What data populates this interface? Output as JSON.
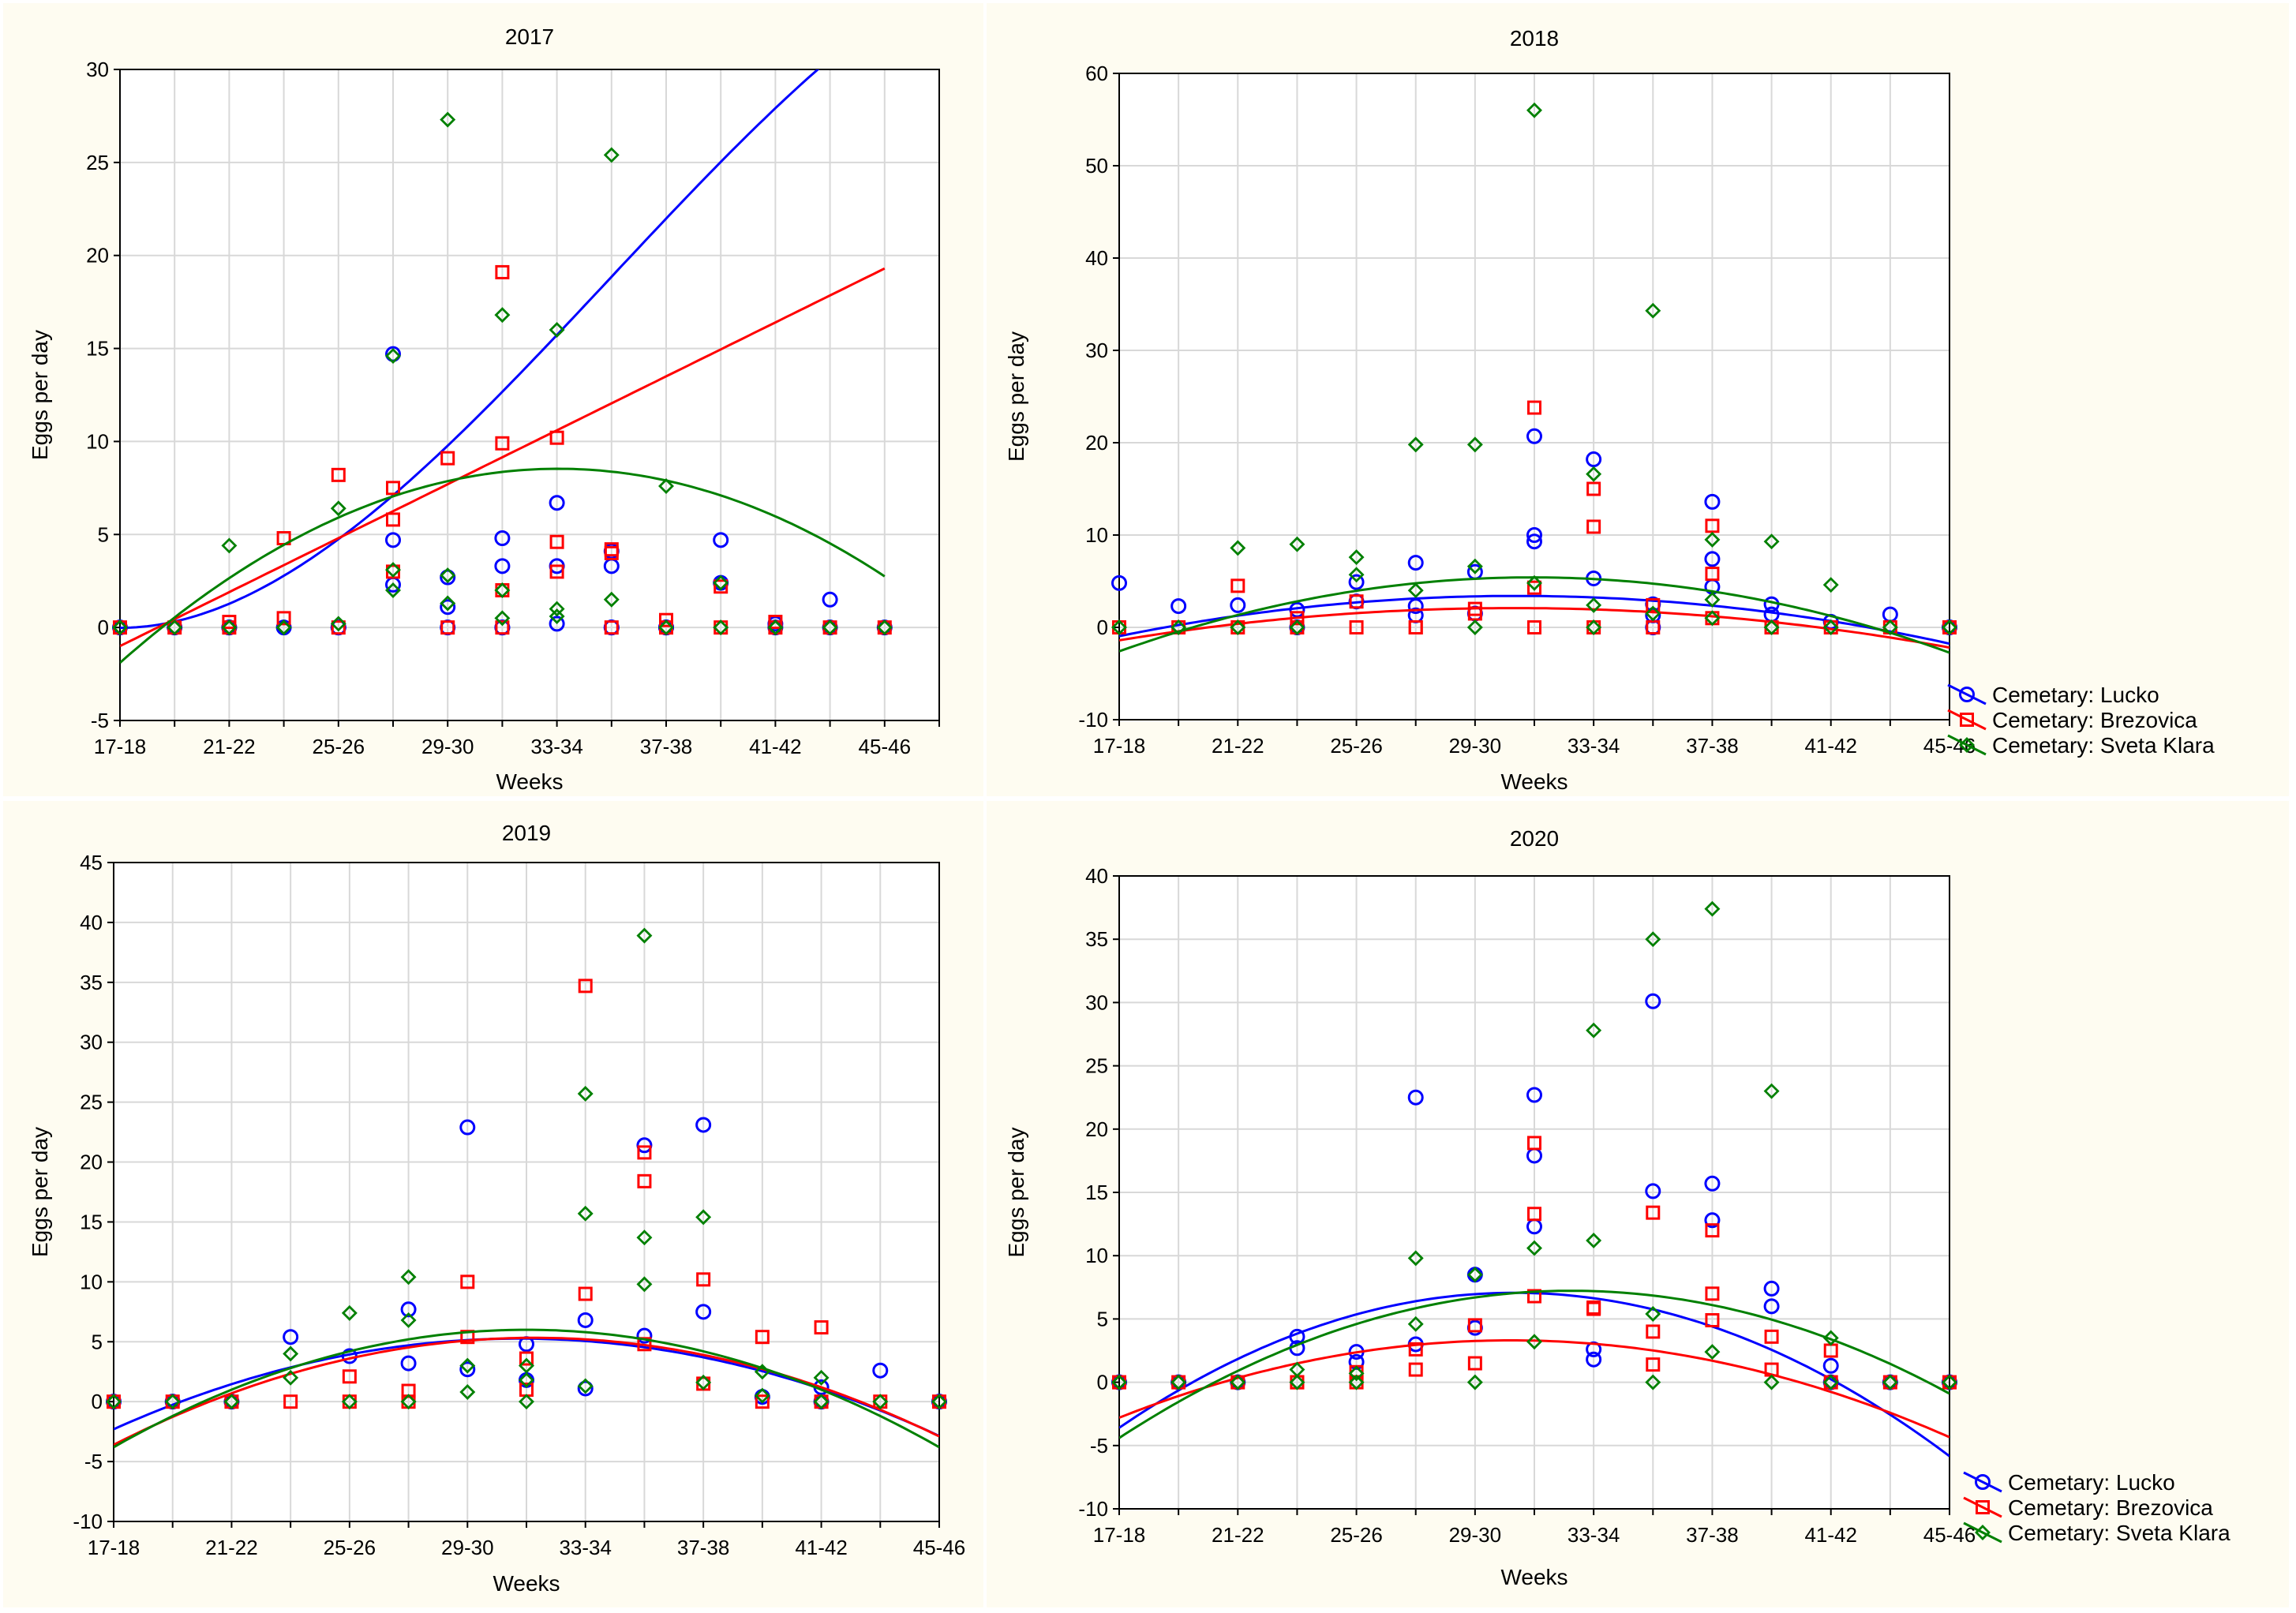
{
  "chart_data": [
    {
      "type": "scatter",
      "title": "2017",
      "xlabel": "Weeks",
      "ylabel": "Eggs per day",
      "ylim": [
        -5,
        30
      ],
      "yticks": [
        -5,
        0,
        5,
        10,
        15,
        20,
        25,
        30
      ],
      "xlim": [
        0,
        15
      ],
      "xtick_labels": [
        "17-18",
        "21-22",
        "25-26",
        "29-30",
        "33-34",
        "37-38",
        "41-42",
        "45-46"
      ],
      "grid": true,
      "series": [
        {
          "name": "Cemetary: Lucko",
          "color": "#0000ff",
          "marker": "circle",
          "x": [
            0,
            1,
            2,
            2,
            3,
            4,
            4,
            5,
            5,
            5,
            6,
            6,
            6,
            7,
            7,
            7,
            7,
            8,
            8,
            8,
            9,
            9,
            9,
            9,
            10,
            10,
            10,
            11,
            11,
            12,
            12,
            13,
            13,
            14
          ],
          "y": [
            0,
            0,
            0,
            0,
            0,
            0,
            0,
            4.7,
            2.3,
            14.7,
            2.7,
            1.1,
            0,
            4.8,
            3.3,
            0,
            0,
            6.7,
            3.3,
            0.2,
            3.3,
            4.1,
            0,
            0,
            0,
            0,
            0,
            4.7,
            2.4,
            0.2,
            0,
            1.5,
            0,
            0
          ],
          "fit": [
            -0.02,
            0.0,
            0.35,
            -0.013
          ]
        },
        {
          "name": "Cemetary: Brezovica",
          "color": "#ff0000",
          "marker": "square",
          "x": [
            0,
            1,
            2,
            2,
            3,
            3,
            4,
            4,
            5,
            5,
            5,
            6,
            6,
            7,
            7,
            7,
            7,
            8,
            8,
            8,
            9,
            9,
            9,
            10,
            10,
            11,
            11,
            12,
            12,
            13,
            14
          ],
          "y": [
            0,
            0,
            0.3,
            0,
            4.8,
            0.5,
            8.2,
            0,
            7.5,
            5.8,
            3.0,
            9.1,
            0,
            19.1,
            9.9,
            2.0,
            0,
            10.2,
            4.6,
            3.0,
            4.2,
            4.0,
            0,
            0.4,
            0,
            2.2,
            0,
            0.3,
            0,
            0,
            0
          ],
          "fit": [
            -1.0,
            1.45,
            0.0,
            0.0
          ]
        },
        {
          "name": "Cemetary: Sveta Klara",
          "color": "#008000",
          "marker": "diamond",
          "x": [
            0,
            1,
            2,
            2,
            3,
            3,
            4,
            4,
            5,
            5,
            5,
            6,
            6,
            6,
            7,
            7,
            7,
            8,
            8,
            8,
            9,
            9,
            10,
            10,
            11,
            11,
            12,
            12,
            13,
            14
          ],
          "y": [
            0,
            0,
            4.4,
            0,
            0,
            0,
            6.4,
            0.2,
            14.6,
            3.1,
            2.0,
            27.3,
            2.8,
            1.3,
            16.8,
            2.0,
            0.5,
            16.0,
            1.0,
            0.6,
            25.4,
            1.5,
            7.6,
            0,
            2.4,
            0,
            0,
            0,
            0,
            0
          ],
          "fit": [
            -1.9,
            2.6,
            -0.162,
            0.0
          ]
        }
      ]
    },
    {
      "type": "scatter",
      "title": "2018",
      "xlabel": "Weeks",
      "ylabel": "Eggs per day",
      "ylim": [
        -10,
        60
      ],
      "yticks": [
        -10,
        0,
        10,
        20,
        30,
        40,
        50,
        60
      ],
      "xlim": [
        0,
        14
      ],
      "xtick_labels": [
        "17-18",
        "21-22",
        "25-26",
        "29-30",
        "33-34",
        "37-38",
        "41-42",
        "45-46"
      ],
      "grid": true,
      "series": [
        {
          "name": "Cemetary: Lucko",
          "color": "#0000ff",
          "marker": "circle",
          "x": [
            0,
            1,
            2,
            3,
            3,
            4,
            4,
            5,
            5,
            5,
            6,
            6,
            7,
            7,
            7,
            8,
            8,
            9,
            9,
            9,
            10,
            10,
            10,
            11,
            11,
            12,
            13,
            14
          ],
          "y": [
            4.8,
            2.3,
            2.4,
            1.9,
            0,
            4.9,
            2.8,
            7.0,
            2.3,
            1.3,
            6.0,
            1.5,
            20.7,
            10.0,
            9.3,
            18.2,
            5.3,
            2.5,
            1.3,
            0,
            13.6,
            7.4,
            4.4,
            2.5,
            1.4,
            0.6,
            1.4,
            0
          ],
          "fit": [
            -0.95,
            1.3,
            -0.097,
            0.0
          ]
        },
        {
          "name": "Cemetary: Brezovica",
          "color": "#ff0000",
          "marker": "square",
          "x": [
            0,
            1,
            2,
            2,
            3,
            3,
            4,
            4,
            5,
            5,
            6,
            6,
            7,
            7,
            7,
            8,
            8,
            8,
            9,
            9,
            10,
            10,
            10,
            11,
            11,
            12,
            13,
            14
          ],
          "y": [
            0,
            0,
            4.5,
            0,
            1.0,
            0,
            0,
            2.8,
            0,
            0,
            2.0,
            1.5,
            23.8,
            0,
            4.3,
            15.0,
            10.9,
            0,
            2.4,
            0,
            11.0,
            5.8,
            1.0,
            0,
            0,
            0,
            0,
            0
          ],
          "fit": [
            -1.4,
            1.05,
            -0.079,
            0.0
          ]
        },
        {
          "name": "Cemetary: Sveta Klara",
          "color": "#008000",
          "marker": "diamond",
          "x": [
            0,
            1,
            2,
            2,
            3,
            3,
            4,
            4,
            5,
            5,
            6,
            6,
            6,
            7,
            7,
            8,
            8,
            8,
            9,
            9,
            10,
            10,
            10,
            11,
            11,
            12,
            12,
            13,
            14
          ],
          "y": [
            0,
            0,
            8.6,
            0,
            9.0,
            0,
            7.6,
            5.7,
            19.8,
            4.0,
            19.8,
            6.6,
            0,
            56.0,
            4.8,
            16.6,
            2.4,
            0,
            34.3,
            1.5,
            9.5,
            3.0,
            1.0,
            9.3,
            0,
            4.6,
            0,
            0,
            0
          ],
          "fit": [
            -2.6,
            2.3,
            -0.165,
            0.0
          ]
        }
      ]
    },
    {
      "type": "scatter",
      "title": "2019",
      "xlabel": "Weeks",
      "ylabel": "Eggs per day",
      "ylim": [
        -10,
        45
      ],
      "yticks": [
        -10,
        -5,
        0,
        5,
        10,
        15,
        20,
        25,
        30,
        35,
        40,
        45
      ],
      "xlim": [
        0,
        14
      ],
      "xtick_labels": [
        "17-18",
        "21-22",
        "25-26",
        "29-30",
        "33-34",
        "37-38",
        "41-42",
        "45-46"
      ],
      "grid": true,
      "series": [
        {
          "name": "Cemetary: Lucko",
          "color": "#0000ff",
          "marker": "circle",
          "x": [
            0,
            1,
            2,
            3,
            4,
            5,
            5,
            6,
            6,
            7,
            7,
            8,
            8,
            9,
            9,
            10,
            10,
            11,
            12,
            12,
            13,
            14
          ],
          "y": [
            0,
            0,
            0,
            5.4,
            3.8,
            7.7,
            3.2,
            22.9,
            2.7,
            4.8,
            1.8,
            6.8,
            1.1,
            21.4,
            5.5,
            23.1,
            7.5,
            0.4,
            1.2,
            0,
            2.6,
            0
          ],
          "fit": [
            -2.3,
            2.2,
            -0.16,
            0.0
          ]
        },
        {
          "name": "Cemetary: Brezovica",
          "color": "#ff0000",
          "marker": "square",
          "x": [
            0,
            1,
            2,
            3,
            4,
            4,
            5,
            5,
            6,
            6,
            7,
            7,
            8,
            8,
            9,
            9,
            9,
            10,
            10,
            11,
            11,
            12,
            12,
            13,
            14
          ],
          "y": [
            0,
            0,
            0,
            0,
            0,
            2.1,
            0.9,
            0,
            10.0,
            5.4,
            3.6,
            1.0,
            34.7,
            9.0,
            20.8,
            18.4,
            4.8,
            10.2,
            1.5,
            5.4,
            0,
            6.2,
            0,
            0,
            0
          ],
          "fit": [
            -3.6,
            2.5,
            -0.175,
            0.0
          ]
        },
        {
          "name": "Cemetary: Sveta Klara",
          "color": "#008000",
          "marker": "diamond",
          "x": [
            0,
            1,
            2,
            3,
            3,
            4,
            4,
            5,
            5,
            5,
            6,
            6,
            7,
            7,
            7,
            8,
            8,
            8,
            9,
            9,
            9,
            10,
            10,
            11,
            11,
            12,
            12,
            13,
            14
          ],
          "y": [
            0,
            0,
            0,
            4.0,
            2.0,
            7.4,
            0,
            10.4,
            6.8,
            0,
            0.8,
            3.0,
            3.0,
            1.8,
            0,
            25.7,
            15.7,
            1.3,
            38.9,
            13.7,
            9.8,
            15.4,
            1.6,
            2.5,
            0.5,
            2.0,
            0,
            0,
            0
          ],
          "fit": [
            -3.8,
            2.8,
            -0.2,
            0.0
          ]
        }
      ]
    },
    {
      "type": "scatter",
      "title": "2020",
      "xlabel": "Weeks",
      "ylabel": "Eggs per day",
      "ylim": [
        -10,
        40
      ],
      "yticks": [
        -10,
        -5,
        0,
        5,
        10,
        15,
        20,
        25,
        30,
        35,
        40
      ],
      "xlim": [
        0,
        14
      ],
      "xtick_labels": [
        "17-18",
        "21-22",
        "25-26",
        "29-30",
        "33-34",
        "37-38",
        "41-42",
        "45-46"
      ],
      "grid": true,
      "series": [
        {
          "name": "Cemetary: Lucko",
          "color": "#0000ff",
          "marker": "circle",
          "x": [
            0,
            1,
            2,
            3,
            3,
            4,
            4,
            5,
            5,
            6,
            6,
            7,
            7,
            7,
            8,
            8,
            9,
            9,
            10,
            10,
            11,
            11,
            12,
            12,
            13,
            14
          ],
          "y": [
            0,
            0,
            0,
            3.6,
            2.7,
            2.4,
            1.6,
            22.5,
            3.0,
            8.5,
            4.3,
            22.7,
            17.9,
            12.3,
            2.6,
            1.8,
            30.1,
            15.1,
            15.7,
            12.8,
            7.4,
            6.0,
            1.3,
            0,
            0,
            0
          ],
          "fit": [
            -3.6,
            3.2,
            -0.24,
            0.0
          ]
        },
        {
          "name": "Cemetary: Brezovica",
          "color": "#ff0000",
          "marker": "square",
          "x": [
            0,
            1,
            2,
            3,
            3,
            4,
            4,
            5,
            5,
            6,
            6,
            7,
            7,
            7,
            8,
            8,
            9,
            9,
            9,
            10,
            10,
            10,
            11,
            11,
            12,
            12,
            13,
            14
          ],
          "y": [
            0,
            0,
            0,
            0,
            0,
            0.8,
            0,
            2.6,
            1.0,
            4.5,
            1.5,
            18.9,
            13.3,
            6.8,
            5.9,
            5.8,
            13.4,
            4.0,
            1.4,
            12.0,
            7.0,
            4.9,
            3.6,
            1.0,
            2.5,
            0,
            0,
            0
          ],
          "fit": [
            -2.8,
            1.85,
            -0.14,
            0.0
          ]
        },
        {
          "name": "Cemetary: Sveta Klara",
          "color": "#008000",
          "marker": "diamond",
          "x": [
            0,
            1,
            2,
            3,
            3,
            4,
            4,
            5,
            5,
            6,
            6,
            7,
            7,
            8,
            8,
            9,
            9,
            9,
            10,
            10,
            11,
            11,
            12,
            12,
            13,
            14
          ],
          "y": [
            0,
            0,
            0,
            1.0,
            0,
            0.7,
            0,
            9.8,
            4.6,
            8.5,
            0,
            10.6,
            3.2,
            27.8,
            11.2,
            35.0,
            5.4,
            0,
            37.4,
            2.4,
            23.0,
            0,
            3.5,
            0,
            0,
            0
          ],
          "fit": [
            -4.4,
            3.05,
            -0.2,
            0.0
          ]
        }
      ]
    }
  ],
  "legend": {
    "items": [
      {
        "label": "Cemetary: Lucko",
        "color": "#0000ff",
        "marker": "circle"
      },
      {
        "label": "Cemetary: Brezovica",
        "color": "#ff0000",
        "marker": "square"
      },
      {
        "label": "Cemetary: Sveta Klara",
        "color": "#008000",
        "marker": "diamond"
      }
    ]
  }
}
